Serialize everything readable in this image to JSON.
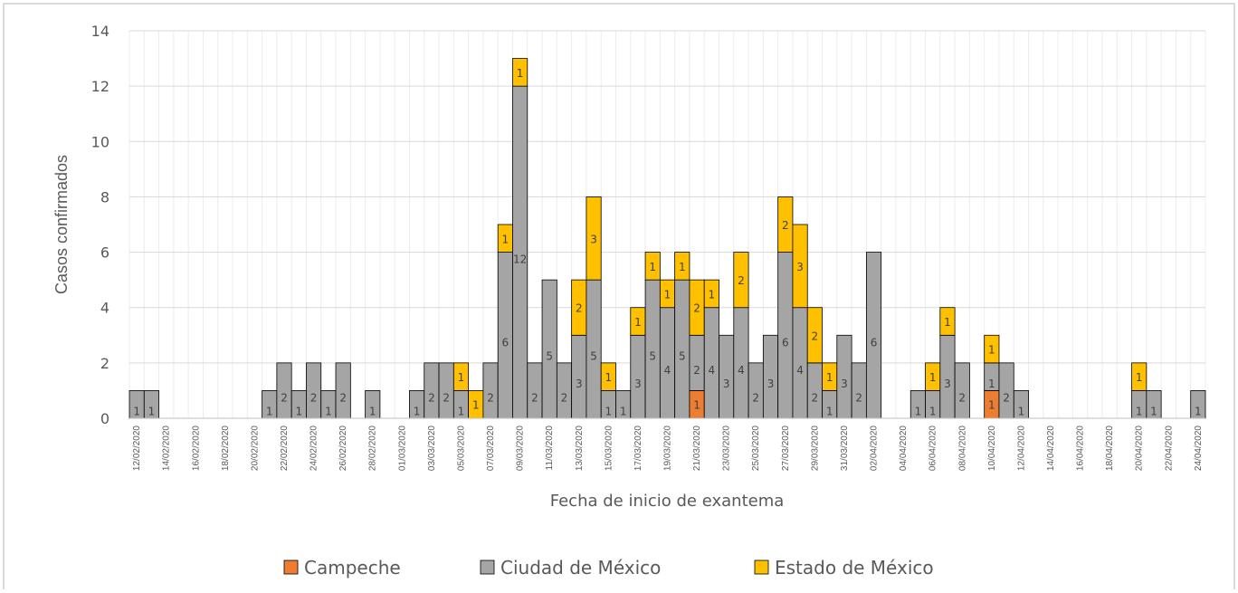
{
  "chart_data": {
    "type": "stacked_bar",
    "xlabel": "Fecha de inicio de exantema",
    "ylabel": "Casos confirmados",
    "categories": [
      "12/02/2020",
      null,
      "14/02/2020",
      null,
      "16/02/2020",
      null,
      "18/02/2020",
      null,
      "20/02/2020",
      null,
      "22/02/2020",
      null,
      "24/02/2020",
      null,
      "26/02/2020",
      null,
      "28/02/2020",
      null,
      "01/03/2020",
      null,
      "03/03/2020",
      null,
      "05/03/2020",
      null,
      "07/03/2020",
      null,
      "09/03/2020",
      null,
      "11/03/2020",
      null,
      "13/03/2020",
      null,
      "15/03/2020",
      null,
      "17/03/2020",
      null,
      "19/03/2020",
      null,
      "21/03/2020",
      null,
      "23/03/2020",
      null,
      "25/03/2020",
      null,
      "27/03/2020",
      null,
      "29/03/2020",
      null,
      "31/03/2020",
      null,
      "02/04/2020",
      null,
      "04/04/2020",
      null,
      "06/04/2020",
      null,
      "08/04/2020",
      null,
      "10/04/2020",
      null,
      "12/04/2020",
      null,
      "14/04/2020",
      null,
      "16/04/2020",
      null,
      "18/04/2020",
      null,
      "20/04/2020",
      null,
      "22/04/2020",
      null,
      "24/04/2020"
    ],
    "series": [
      {
        "name": "Campeche",
        "color": "#ed7d31",
        "values": [
          0,
          0,
          0,
          0,
          0,
          0,
          0,
          0,
          0,
          0,
          0,
          0,
          0,
          0,
          0,
          0,
          0,
          0,
          0,
          0,
          0,
          0,
          0,
          0,
          0,
          0,
          0,
          0,
          0,
          0,
          0,
          0,
          0,
          0,
          0,
          0,
          0,
          0,
          1,
          0,
          0,
          0,
          0,
          0,
          0,
          0,
          0,
          0,
          0,
          0,
          0,
          0,
          0,
          0,
          0,
          0,
          0,
          0,
          1,
          0,
          0,
          0,
          0,
          0,
          0,
          0,
          0,
          0,
          0,
          0,
          0,
          0,
          0
        ]
      },
      {
        "name": "Ciudad de México",
        "color": "#a5a5a5",
        "values": [
          1,
          1,
          0,
          0,
          0,
          0,
          0,
          0,
          0,
          1,
          2,
          1,
          2,
          1,
          2,
          0,
          1,
          0,
          0,
          1,
          2,
          2,
          1,
          0,
          2,
          6,
          12,
          2,
          5,
          2,
          3,
          5,
          1,
          1,
          3,
          5,
          4,
          5,
          2,
          4,
          3,
          4,
          2,
          3,
          6,
          4,
          2,
          1,
          3,
          2,
          6,
          0,
          0,
          1,
          1,
          3,
          2,
          0,
          1,
          2,
          1,
          0,
          0,
          0,
          0,
          0,
          0,
          0,
          1,
          1,
          0,
          0,
          1
        ]
      },
      {
        "name": "Estado de México",
        "color": "#ffc000",
        "values": [
          0,
          0,
          0,
          0,
          0,
          0,
          0,
          0,
          0,
          0,
          0,
          0,
          0,
          0,
          0,
          0,
          0,
          0,
          0,
          0,
          0,
          0,
          1,
          1,
          0,
          1,
          1,
          0,
          0,
          0,
          2,
          3,
          1,
          0,
          1,
          1,
          1,
          1,
          2,
          1,
          0,
          2,
          0,
          0,
          2,
          3,
          2,
          1,
          0,
          0,
          0,
          0,
          0,
          0,
          1,
          1,
          0,
          0,
          1,
          0,
          0,
          0,
          0,
          0,
          0,
          0,
          0,
          0,
          1,
          0,
          0,
          0,
          0
        ]
      }
    ],
    "ylim": [
      0,
      14
    ],
    "yticks": [
      0,
      2,
      4,
      6,
      8,
      10,
      12,
      14
    ],
    "grid": true
  }
}
